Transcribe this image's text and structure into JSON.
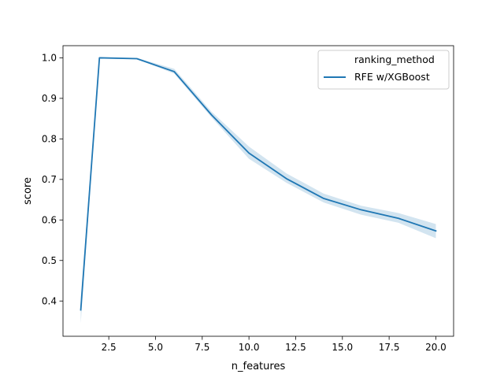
{
  "chart_data": {
    "type": "line",
    "xlabel": "n_features",
    "ylabel": "score",
    "xlim": [
      0.05,
      20.95
    ],
    "ylim": [
      0.313,
      1.03
    ],
    "x_ticks": [
      2.5,
      5.0,
      7.5,
      10.0,
      12.5,
      15.0,
      17.5,
      20.0
    ],
    "x_tick_labels": [
      "2.5",
      "5.0",
      "7.5",
      "10.0",
      "12.5",
      "15.0",
      "17.5",
      "20.0"
    ],
    "y_ticks": [
      0.4,
      0.5,
      0.6,
      0.7,
      0.8,
      0.9,
      1.0
    ],
    "y_tick_labels": [
      "0.4",
      "0.5",
      "0.6",
      "0.7",
      "0.8",
      "0.9",
      "1.0"
    ],
    "grid": false,
    "legend": {
      "title": "ranking_method",
      "entries": [
        "RFE w/XGBoost"
      ],
      "placement": "upper right"
    },
    "series": [
      {
        "name": "RFE w/XGBoost",
        "color": "#1f77b4",
        "x": [
          1,
          2,
          4,
          6,
          8,
          10,
          12,
          14,
          16,
          18,
          20
        ],
        "y": [
          0.378,
          1.0,
          0.998,
          0.966,
          0.859,
          0.765,
          0.702,
          0.653,
          0.625,
          0.604,
          0.573
        ],
        "ci_lower": [
          0.345,
          0.999,
          0.997,
          0.961,
          0.853,
          0.751,
          0.692,
          0.643,
          0.613,
          0.593,
          0.555
        ],
        "ci_upper": [
          0.41,
          1.001,
          1.0,
          0.973,
          0.867,
          0.781,
          0.715,
          0.665,
          0.635,
          0.617,
          0.59
        ]
      }
    ]
  }
}
